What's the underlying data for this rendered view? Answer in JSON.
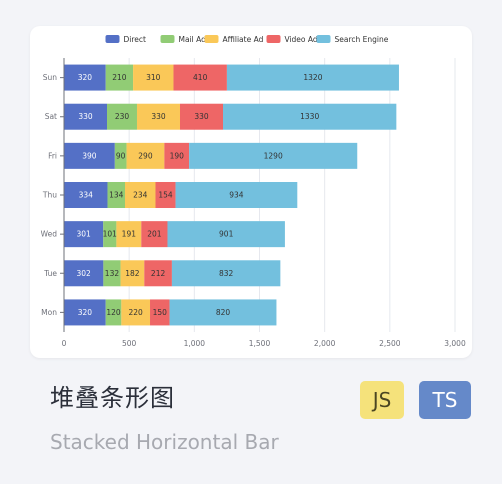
{
  "card": {
    "title": "堆叠条形图",
    "subtitle": "Stacked Horizontal Bar",
    "badges": {
      "js": "JS",
      "ts": "TS"
    }
  },
  "colors": {
    "Direct": "#5470c6",
    "Mail Ad": "#91cc75",
    "Affiliate Ad": "#fac858",
    "Video Ad": "#ee6666",
    "Search Engine": "#73c0de",
    "badge_js": "#f5e27b",
    "badge_ts": "#6589c9"
  },
  "chart_data": {
    "type": "bar",
    "orientation": "horizontal",
    "stacked": true,
    "categories": [
      "Mon",
      "Tue",
      "Wed",
      "Thu",
      "Fri",
      "Sat",
      "Sun"
    ],
    "series": [
      {
        "name": "Direct",
        "values": [
          320,
          302,
          301,
          334,
          390,
          330,
          320
        ]
      },
      {
        "name": "Mail Ad",
        "values": [
          120,
          132,
          101,
          134,
          90,
          230,
          210
        ]
      },
      {
        "name": "Affiliate Ad",
        "values": [
          220,
          182,
          191,
          234,
          290,
          330,
          310
        ]
      },
      {
        "name": "Video Ad",
        "values": [
          150,
          212,
          201,
          154,
          190,
          330,
          410
        ]
      },
      {
        "name": "Search Engine",
        "values": [
          820,
          832,
          901,
          934,
          1290,
          1330,
          1320
        ]
      }
    ],
    "xlim": [
      0,
      3000
    ],
    "xticks": [
      0,
      500,
      1000,
      1500,
      2000,
      2500,
      3000
    ],
    "xtick_labels": [
      "0",
      "500",
      "1,000",
      "1,500",
      "2,000",
      "2,500",
      "3,000"
    ],
    "grid": true,
    "legend_position": "top-center",
    "data_labels": true
  }
}
